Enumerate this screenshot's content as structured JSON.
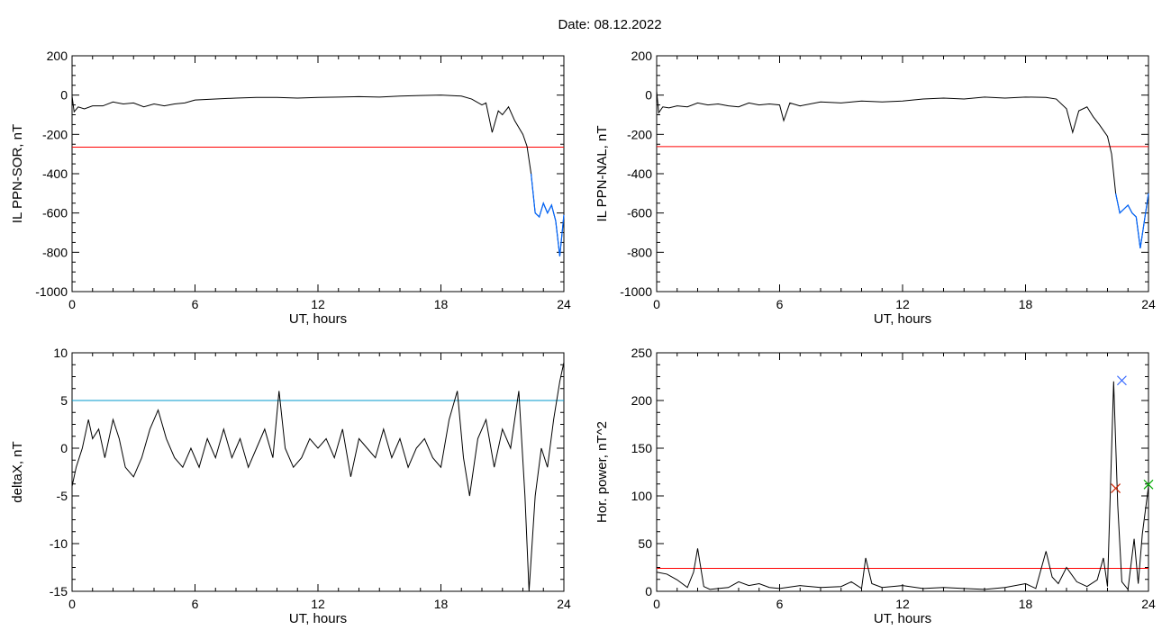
{
  "header": {
    "date_title": "Date:  08.12.2022"
  },
  "colors": {
    "series": "#000000",
    "threshold": "#ff0000",
    "threshold_alt": "#0099cc",
    "highlight": "#0066ff",
    "marker_blue": "#3366ff",
    "marker_red": "#cc2200",
    "marker_green": "#00aa00"
  },
  "chart_data": [
    {
      "type": "line",
      "xlabel": "UT, hours",
      "ylabel": "IL PPN-SOR, nT",
      "xlim": [
        0,
        24
      ],
      "ylim": [
        -1000,
        200
      ],
      "xticks": [
        0,
        6,
        12,
        18,
        24
      ],
      "yticks": [
        200,
        0,
        -200,
        -400,
        -600,
        -800,
        -1000
      ],
      "threshold": -265,
      "series": [
        {
          "x": [
            0,
            0.1,
            0.3,
            0.6,
            1,
            1.5,
            2,
            2.5,
            3,
            3.5,
            4,
            4.5,
            5,
            5.5,
            6,
            7,
            8,
            9,
            10,
            11,
            12,
            13,
            14,
            15,
            16,
            17,
            18,
            19,
            19.5,
            20,
            20.2,
            20.5,
            20.8,
            21,
            21.3,
            21.6,
            22,
            22.2,
            22.4,
            22.6,
            22.8,
            23,
            23.2,
            23.4,
            23.6,
            23.8,
            24
          ],
          "y": [
            -5,
            -85,
            -60,
            -70,
            -55,
            -55,
            -35,
            -45,
            -40,
            -60,
            -45,
            -55,
            -45,
            -40,
            -25,
            -20,
            -15,
            -12,
            -12,
            -15,
            -12,
            -10,
            -8,
            -10,
            -5,
            -2,
            0,
            -5,
            -20,
            -50,
            -40,
            -190,
            -80,
            -100,
            -60,
            -130,
            -200,
            -260,
            -400,
            -600,
            -620,
            -550,
            -600,
            -560,
            -640,
            -820,
            -610
          ]
        }
      ],
      "highlight_from_x": 22.4
    },
    {
      "type": "line",
      "xlabel": "UT, hours",
      "ylabel": "IL PPN-NAL, nT",
      "xlim": [
        0,
        24
      ],
      "ylim": [
        -1000,
        200
      ],
      "xticks": [
        0,
        6,
        12,
        18,
        24
      ],
      "yticks": [
        200,
        0,
        -200,
        -400,
        -600,
        -800,
        -1000
      ],
      "threshold": -262,
      "series": [
        {
          "x": [
            0,
            0.1,
            0.3,
            0.6,
            1,
            1.5,
            2,
            2.5,
            3,
            3.5,
            4,
            4.5,
            5,
            5.5,
            6,
            6.2,
            6.5,
            7,
            8,
            9,
            10,
            11,
            12,
            13,
            14,
            15,
            16,
            17,
            18,
            19,
            19.5,
            20,
            20.3,
            20.6,
            21,
            21.3,
            21.6,
            22,
            22.2,
            22.4,
            22.6,
            22.8,
            23,
            23.2,
            23.4,
            23.6,
            23.8,
            24
          ],
          "y": [
            20,
            -90,
            -60,
            -65,
            -55,
            -60,
            -40,
            -50,
            -45,
            -55,
            -60,
            -40,
            -50,
            -45,
            -50,
            -130,
            -40,
            -55,
            -35,
            -40,
            -30,
            -35,
            -30,
            -20,
            -15,
            -20,
            -10,
            -15,
            -10,
            -12,
            -20,
            -70,
            -190,
            -80,
            -60,
            -110,
            -150,
            -210,
            -300,
            -500,
            -600,
            -580,
            -560,
            -600,
            -620,
            -780,
            -640,
            -500
          ]
        }
      ],
      "highlight_from_x": 22.4
    },
    {
      "type": "line",
      "xlabel": "UT, hours",
      "ylabel": "deltaX, nT",
      "xlim": [
        0,
        24
      ],
      "ylim": [
        -15,
        10
      ],
      "xticks": [
        0,
        6,
        12,
        18,
        24
      ],
      "yticks": [
        10,
        5,
        0,
        -5,
        -10,
        -15
      ],
      "threshold": 5,
      "series": [
        {
          "x": [
            0,
            0.2,
            0.5,
            0.8,
            1,
            1.3,
            1.6,
            2,
            2.3,
            2.6,
            3,
            3.4,
            3.8,
            4.2,
            4.6,
            5,
            5.4,
            5.8,
            6.2,
            6.6,
            7,
            7.4,
            7.8,
            8.2,
            8.6,
            9,
            9.4,
            9.8,
            10.1,
            10.4,
            10.8,
            11.2,
            11.6,
            12,
            12.4,
            12.8,
            13.2,
            13.6,
            14,
            14.4,
            14.8,
            15.2,
            15.6,
            16,
            16.4,
            16.8,
            17.2,
            17.6,
            18,
            18.4,
            18.8,
            19.1,
            19.4,
            19.8,
            20.2,
            20.6,
            21,
            21.4,
            21.8,
            22.1,
            22.3,
            22.6,
            22.9,
            23.2,
            23.5,
            23.8,
            24
          ],
          "y": [
            -4,
            -2,
            0,
            3,
            1,
            2,
            -1,
            3,
            1,
            -2,
            -3,
            -1,
            2,
            4,
            1,
            -1,
            -2,
            0,
            -2,
            1,
            -1,
            2,
            -1,
            1,
            -2,
            0,
            2,
            -1,
            6,
            0,
            -2,
            -1,
            1,
            0,
            1,
            -1,
            2,
            -3,
            1,
            0,
            -1,
            2,
            -1,
            1,
            -2,
            0,
            1,
            -1,
            -2,
            3,
            6,
            -1,
            -5,
            1,
            3,
            -2,
            2,
            0,
            6,
            -5,
            -15,
            -5,
            0,
            -2,
            3,
            7,
            9
          ]
        }
      ]
    },
    {
      "type": "line",
      "xlabel": "UT, hours",
      "ylabel": "Hor. power, nT^2",
      "xlim": [
        0,
        24
      ],
      "ylim": [
        0,
        250
      ],
      "xticks": [
        0,
        6,
        12,
        18,
        24
      ],
      "yticks": [
        250,
        200,
        150,
        100,
        50,
        0
      ],
      "threshold": 24,
      "series": [
        {
          "x": [
            0,
            0.5,
            1,
            1.5,
            1.8,
            2,
            2.3,
            2.6,
            3,
            3.5,
            4,
            4.5,
            5,
            5.5,
            6,
            7,
            8,
            9,
            9.5,
            10,
            10.2,
            10.5,
            11,
            12,
            13,
            14,
            15,
            16,
            17,
            18,
            18.5,
            19,
            19.3,
            19.6,
            20,
            20.5,
            21,
            21.5,
            21.8,
            22,
            22.3,
            22.5,
            22.7,
            23,
            23.3,
            23.5,
            23.7,
            24
          ],
          "y": [
            20,
            18,
            12,
            4,
            20,
            45,
            5,
            2,
            3,
            4,
            10,
            6,
            8,
            4,
            3,
            6,
            4,
            5,
            10,
            3,
            35,
            8,
            4,
            6,
            3,
            4,
            3,
            2,
            4,
            8,
            3,
            42,
            15,
            8,
            25,
            10,
            5,
            12,
            35,
            5,
            220,
            90,
            10,
            2,
            55,
            8,
            60,
            110
          ]
        }
      ],
      "markers": [
        {
          "x": 22.7,
          "y": 221,
          "color": "#3366ff"
        },
        {
          "x": 22.4,
          "y": 108,
          "color": "#cc2200"
        },
        {
          "x": 24,
          "y": 112,
          "color": "#00aa00"
        }
      ]
    }
  ]
}
